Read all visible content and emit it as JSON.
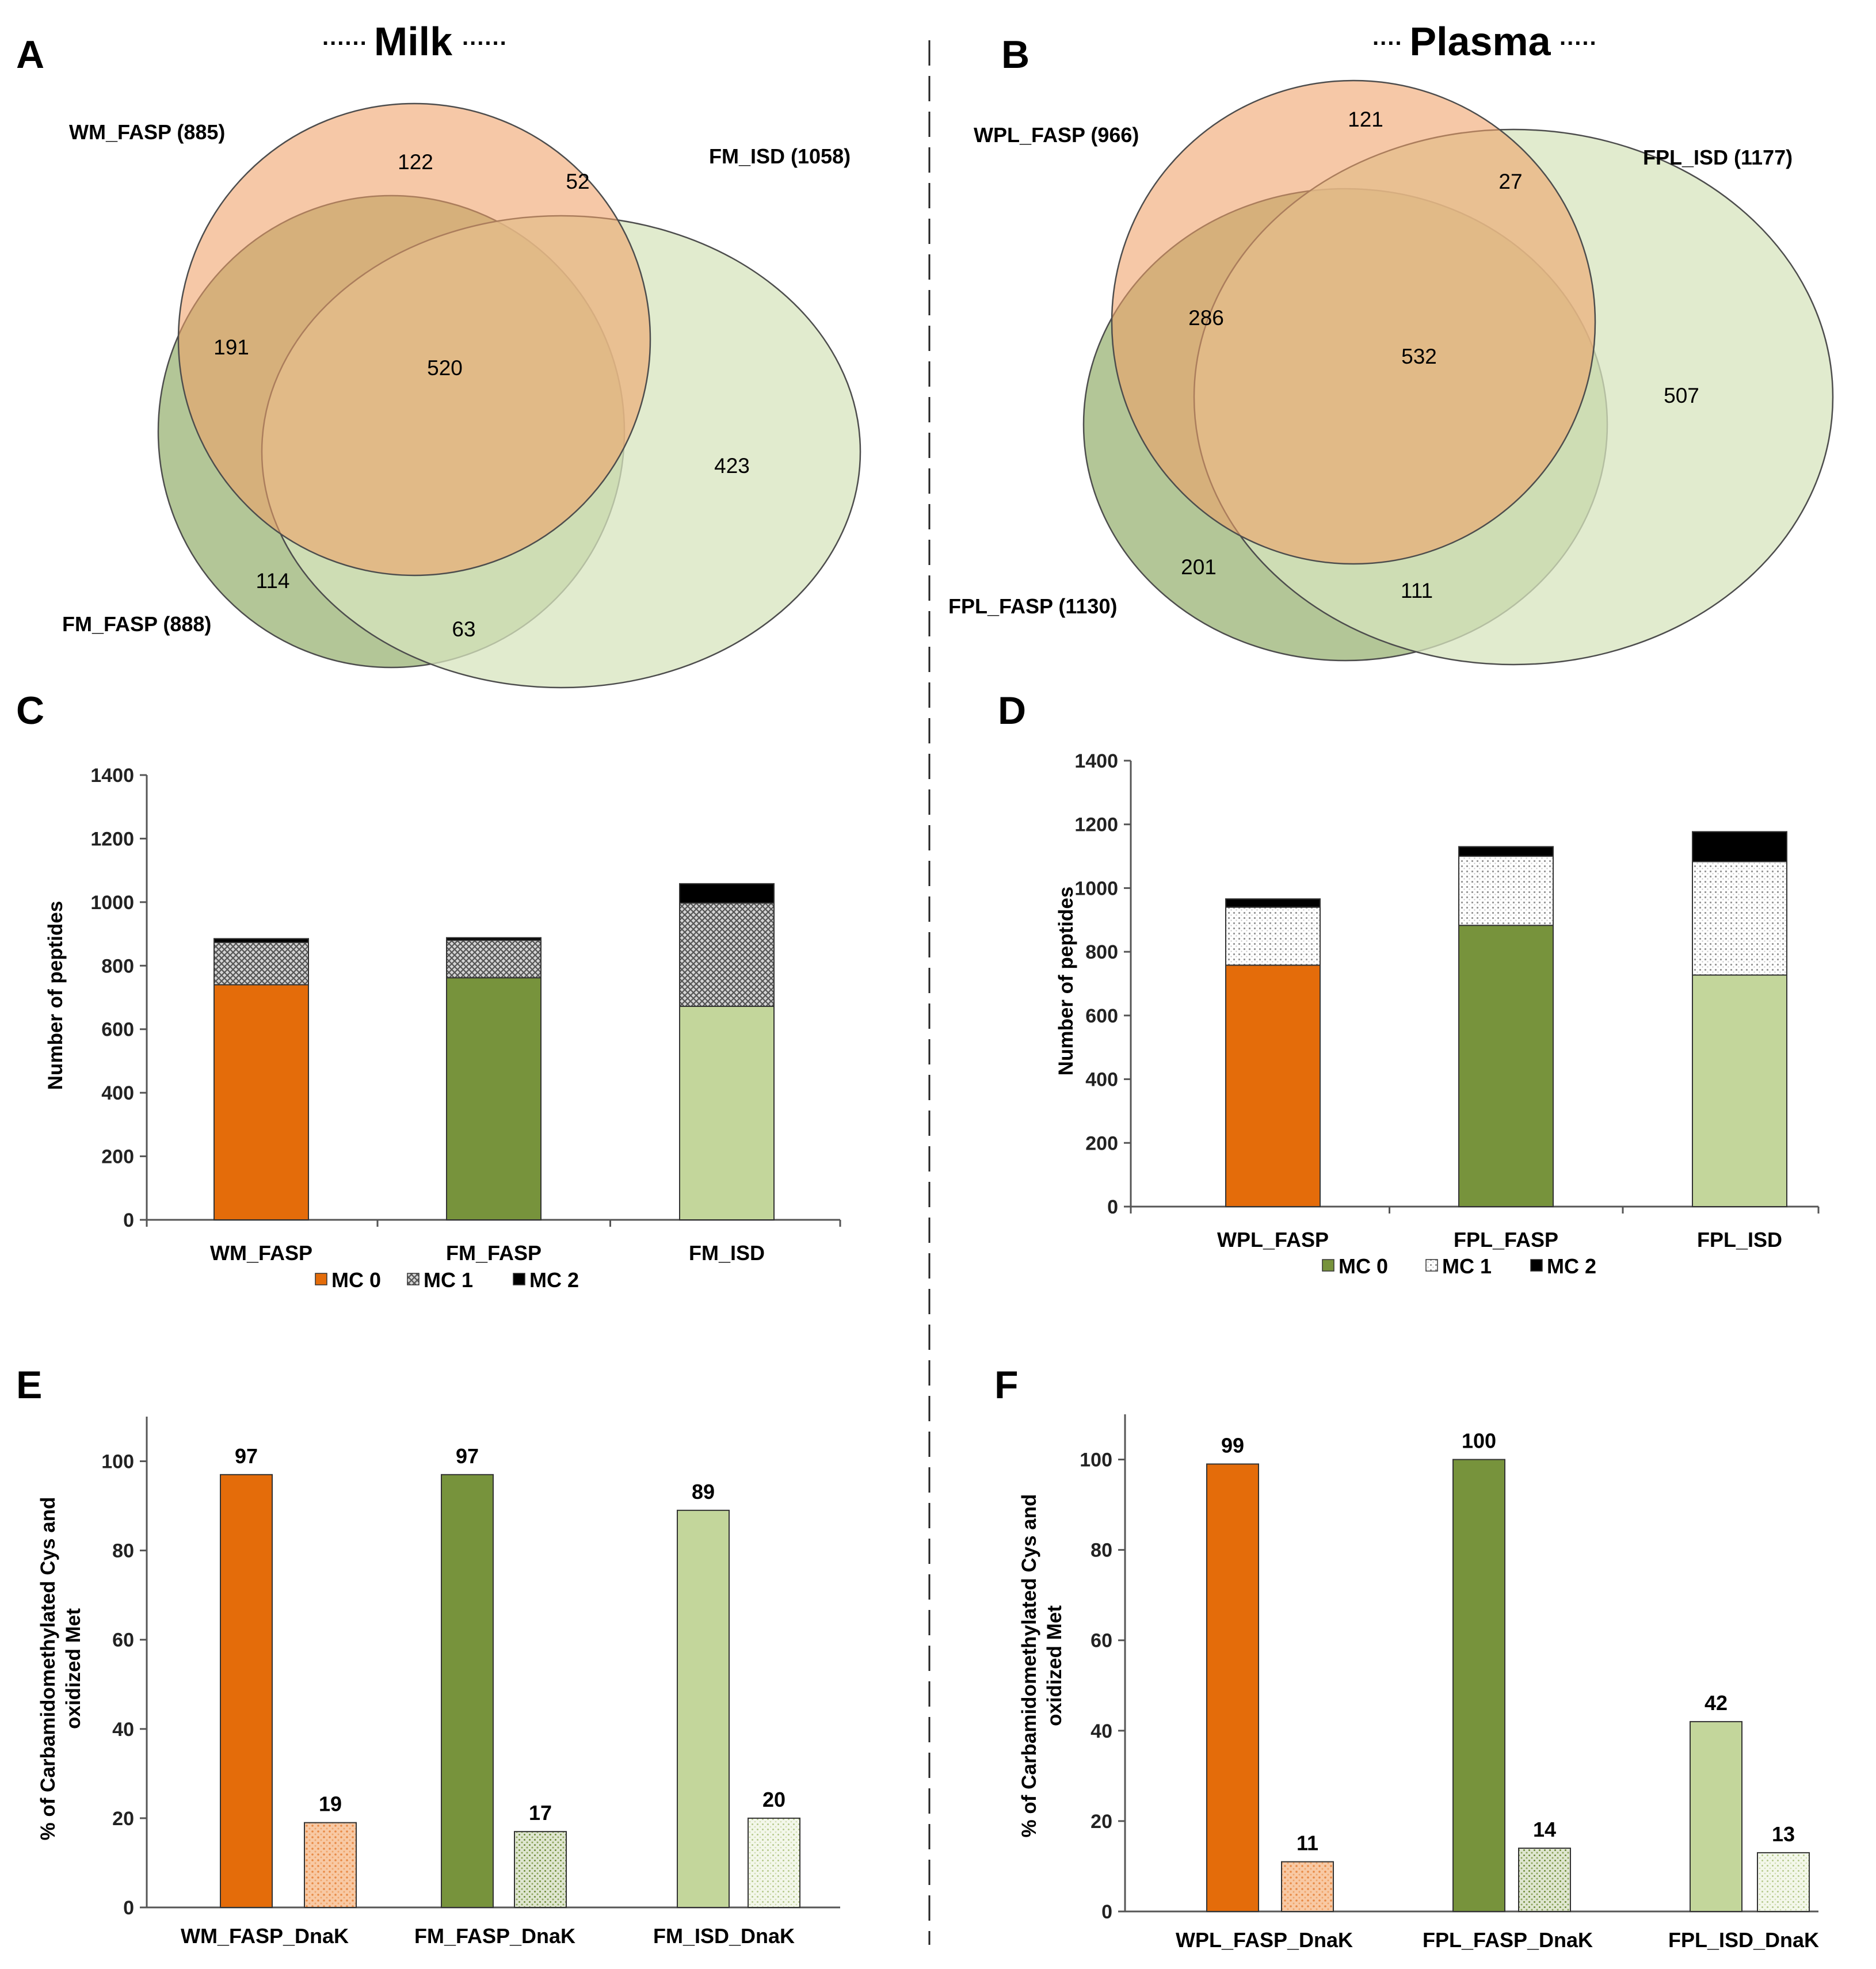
{
  "colors": {
    "orange": "#e46c0a",
    "dark_green": "#77933c",
    "light_green": "#c3d69b",
    "black": "#000000",
    "venn_orange": "#f0a168",
    "venn_green": "#8aa860",
    "venn_light": "#d7e4bd"
  },
  "headers": {
    "milk": "Milk",
    "plasma": "Plasma",
    "dots_left": "......",
    "dots_right": "......",
    "dots_short_left": "....",
    "dots_short_right": "....."
  },
  "chart_data": [
    {
      "panel": "A",
      "type": "venn",
      "title": "Milk",
      "sets": [
        {
          "name": "WM_FASP",
          "label": "WM_FASP (885)",
          "total": 885
        },
        {
          "name": "FM_ISD",
          "label": "FM_ISD (1058)",
          "total": 1058
        },
        {
          "name": "FM_FASP",
          "label": "FM_FASP (888)",
          "total": 888
        }
      ],
      "regions": [
        {
          "id": "wm_only",
          "value": 122
        },
        {
          "id": "wm_isd",
          "value": 52
        },
        {
          "id": "wm_fmfasp",
          "value": 191
        },
        {
          "id": "all",
          "value": 520
        },
        {
          "id": "isd_only",
          "value": 423
        },
        {
          "id": "fmfasp_only",
          "value": 114
        },
        {
          "id": "fmfasp_isd",
          "value": 63
        }
      ]
    },
    {
      "panel": "B",
      "type": "venn",
      "title": "Plasma",
      "sets": [
        {
          "name": "WPL_FASP",
          "label": "WPL_FASP (966)",
          "total": 966
        },
        {
          "name": "FPL_ISD",
          "label": "FPL_ISD (1177)",
          "total": 1177
        },
        {
          "name": "FPL_FASP",
          "label": "FPL_FASP (1130)",
          "total": 1130
        }
      ],
      "regions": [
        {
          "id": "wpl_only",
          "value": 121
        },
        {
          "id": "wpl_isd",
          "value": 27
        },
        {
          "id": "wpl_fplfasp",
          "value": 286
        },
        {
          "id": "all",
          "value": 532
        },
        {
          "id": "isd_only",
          "value": 507
        },
        {
          "id": "fplfasp_only",
          "value": 201
        },
        {
          "id": "fplfasp_isd",
          "value": 111
        }
      ]
    },
    {
      "panel": "C",
      "type": "bar",
      "stacked": true,
      "ylabel": "Number of peptides",
      "ylim": [
        0,
        1400
      ],
      "yticks": [
        0,
        200,
        400,
        600,
        800,
        1000,
        1200,
        1400
      ],
      "categories": [
        "WM_FASP",
        "FM_FASP",
        "FM_ISD"
      ],
      "base_colors": [
        "#e46c0a",
        "#77933c",
        "#c3d69b"
      ],
      "series": [
        {
          "name": "MC 0",
          "values": [
            740,
            762,
            672
          ]
        },
        {
          "name": "MC 1",
          "values": [
            133,
            118,
            325
          ]
        },
        {
          "name": "MC 2",
          "values": [
            12,
            8,
            61
          ]
        }
      ],
      "legend": [
        {
          "label": "MC 0",
          "style": "orange"
        },
        {
          "label": "MC 1",
          "style": "crosshatch"
        },
        {
          "label": "MC 2",
          "style": "black"
        }
      ]
    },
    {
      "panel": "D",
      "type": "bar",
      "stacked": true,
      "ylabel": "Number of peptides",
      "ylim": [
        0,
        1400
      ],
      "yticks": [
        0,
        200,
        400,
        600,
        800,
        1000,
        1200,
        1400
      ],
      "categories": [
        "WPL_FASP",
        "FPL_FASP",
        "FPL_ISD"
      ],
      "base_colors": [
        "#e46c0a",
        "#77933c",
        "#c3d69b"
      ],
      "series": [
        {
          "name": "MC 0",
          "values": [
            758,
            883,
            727
          ]
        },
        {
          "name": "MC 1",
          "values": [
            182,
            217,
            356
          ]
        },
        {
          "name": "MC 2",
          "values": [
            26,
            30,
            94
          ]
        }
      ],
      "legend": [
        {
          "label": "MC 0",
          "style": "green"
        },
        {
          "label": "MC 1",
          "style": "dotted"
        },
        {
          "label": "MC 2",
          "style": "black"
        }
      ]
    },
    {
      "panel": "E",
      "type": "bar",
      "ylabel_lines": [
        "% of Carbamidomethylated Cys and",
        "oxidized Met"
      ],
      "ylim": [
        0,
        110
      ],
      "yticks": [
        0,
        20,
        40,
        60,
        80,
        100
      ],
      "categories": [
        "WM_FASP_DnaK",
        "FM_FASP_DnaK",
        "FM_ISD_DnaK"
      ],
      "base_colors": [
        "#e46c0a",
        "#77933c",
        "#c3d69b"
      ],
      "series": [
        {
          "name": "Carbamidomethylated Cys",
          "values": [
            97,
            97,
            89
          ],
          "labels": [
            "97",
            "97",
            "89"
          ]
        },
        {
          "name": "Oxidized Met",
          "values": [
            19,
            17,
            20
          ],
          "labels": [
            "19",
            "17",
            "20"
          ]
        }
      ]
    },
    {
      "panel": "F",
      "type": "bar",
      "ylabel_lines": [
        "% of Carbamidomethylated Cys and",
        "oxidized Met"
      ],
      "ylim": [
        0,
        110
      ],
      "yticks": [
        0,
        20,
        40,
        60,
        80,
        100
      ],
      "categories": [
        "WPL_FASP_DnaK",
        "FPL_FASP_DnaK",
        "FPL_ISD_DnaK"
      ],
      "base_colors": [
        "#e46c0a",
        "#77933c",
        "#c3d69b"
      ],
      "series": [
        {
          "name": "Carbamidomethylated Cys",
          "values": [
            99,
            100,
            42
          ],
          "labels": [
            "99",
            "100",
            "42"
          ]
        },
        {
          "name": "Oxidized Met",
          "values": [
            11,
            14,
            13
          ],
          "labels": [
            "11",
            "14",
            "13"
          ]
        }
      ]
    }
  ]
}
